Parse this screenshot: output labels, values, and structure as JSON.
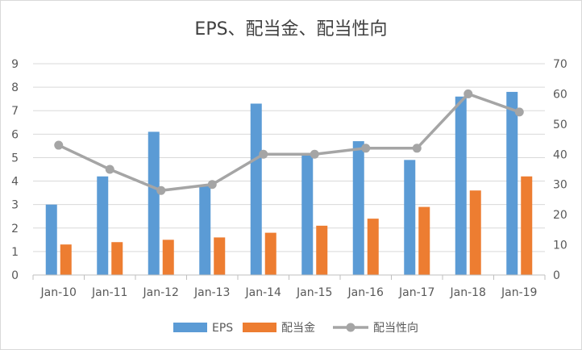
{
  "chart_data": {
    "type": "bar",
    "title": "EPS、配当金、配当性向",
    "categories": [
      "Jan-10",
      "Jan-11",
      "Jan-12",
      "Jan-13",
      "Jan-14",
      "Jan-15",
      "Jan-16",
      "Jan-17",
      "Jan-18",
      "Jan-19"
    ],
    "series": [
      {
        "name": "EPS",
        "type": "bar",
        "axis": "left",
        "color": "#5b9bd5",
        "values": [
          3.0,
          4.2,
          6.1,
          3.8,
          7.3,
          5.1,
          5.7,
          4.9,
          7.6,
          7.8
        ]
      },
      {
        "name": "配当金",
        "type": "bar",
        "axis": "left",
        "color": "#ed7d31",
        "values": [
          1.3,
          1.4,
          1.5,
          1.6,
          1.8,
          2.1,
          2.4,
          2.9,
          3.6,
          4.2
        ]
      },
      {
        "name": "配当性向",
        "type": "line",
        "axis": "right",
        "color": "#a5a5a5",
        "values": [
          43,
          35,
          28,
          30,
          40,
          40,
          42,
          42,
          60,
          54
        ]
      }
    ],
    "ylim_left": [
      0,
      9
    ],
    "ylim_right": [
      0,
      70
    ],
    "yticks_left": [
      "0",
      "1",
      "2",
      "3",
      "4",
      "5",
      "6",
      "7",
      "8",
      "9"
    ],
    "yticks_right": [
      "0",
      "10",
      "20",
      "30",
      "40",
      "50",
      "60",
      "70"
    ],
    "grid": true,
    "legend_position": "bottom"
  }
}
